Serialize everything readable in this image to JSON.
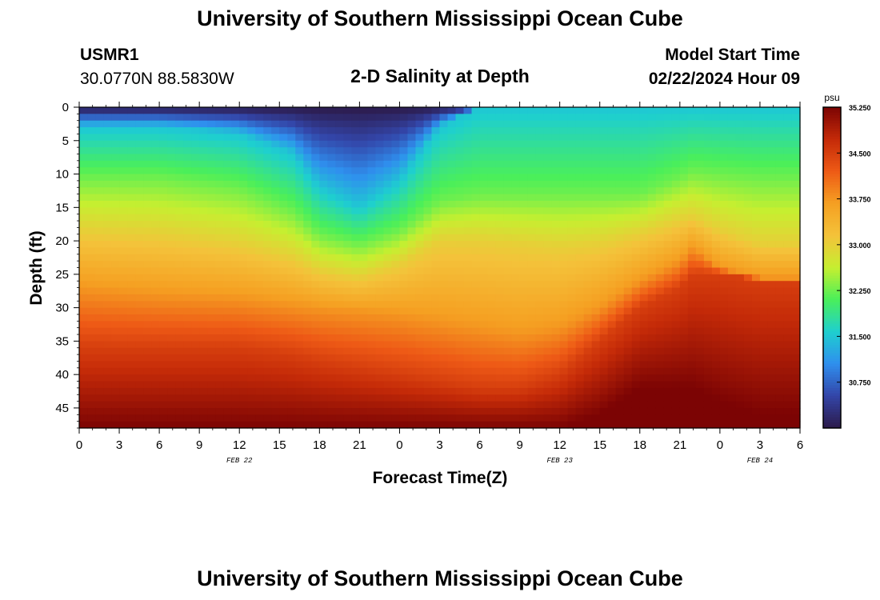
{
  "header": {
    "title": "University of Southern Mississippi Ocean Cube",
    "station_id": "USMR1",
    "coordinates": "30.0770N  88.5830W",
    "plot_title": "2-D Salinity at Depth",
    "model_start_label": "Model Start Time",
    "model_start_value": "02/22/2024 Hour 09"
  },
  "footer": {
    "title": "University of Southern Mississippi Ocean Cube"
  },
  "chart_data": {
    "type": "heatmap",
    "title": "2-D Salinity at Depth",
    "xlabel": "Forecast Time(Z)",
    "ylabel": "Depth (ft)",
    "x_tick_labels": [
      "0",
      "3",
      "6",
      "9",
      "12",
      "15",
      "18",
      "21",
      "0",
      "3",
      "6",
      "9",
      "12",
      "15",
      "18",
      "21",
      "0",
      "3",
      "6"
    ],
    "x_range_hours": [
      0,
      54
    ],
    "date_labels": [
      {
        "text": "FEB 22",
        "hour": 12
      },
      {
        "text": "FEB 23",
        "hour": 36
      },
      {
        "text": "FEB 24",
        "hour": 51
      }
    ],
    "y_ticks": [
      0,
      5,
      10,
      15,
      20,
      25,
      30,
      35,
      40,
      45
    ],
    "y_range_ft": [
      0,
      48
    ],
    "colorbar": {
      "unit": "psu",
      "min": 30.0,
      "max": 35.25,
      "tick_values": [
        "35.250",
        "34.500",
        "33.750",
        "33.000",
        "32.250",
        "31.500",
        "30.750"
      ],
      "colors": [
        "#2c1a4a",
        "#3345a8",
        "#2f8fee",
        "#1ecfcf",
        "#4aef5a",
        "#c6ef30",
        "#f4c23a",
        "#f5a022",
        "#ee5a16",
        "#c42a08",
        "#7c0404"
      ]
    },
    "iso_salinity_depths": {
      "hours": [
        0,
        6,
        12,
        16,
        18,
        21,
        24,
        27,
        30,
        33,
        36,
        39,
        42,
        45,
        46,
        48,
        51,
        54
      ],
      "s31_5": [
        3,
        3,
        4,
        7,
        12,
        15,
        11,
        3,
        0,
        0,
        0,
        0,
        0,
        0,
        0,
        0,
        0,
        0
      ],
      "s32_25": [
        10.5,
        10.5,
        12,
        15.5,
        19,
        20.5,
        18.5,
        14,
        13,
        13,
        13,
        13,
        13,
        10.5,
        9.5,
        10,
        10.5,
        10.5
      ],
      "s33_0": [
        18.5,
        19,
        20.5,
        22.5,
        24.5,
        25.5,
        23.5,
        20,
        20,
        20.5,
        21,
        20.5,
        19,
        17,
        16.5,
        18.5,
        20.5,
        20.5
      ],
      "s33_75": [
        27,
        28,
        28.5,
        29.5,
        30,
        30.5,
        31,
        32,
        33,
        34,
        33,
        30,
        26,
        23,
        21,
        24,
        25.5,
        25.5
      ],
      "s34_5": [
        36,
        36,
        36,
        37,
        38,
        39,
        40,
        41,
        42,
        42,
        40,
        35,
        30,
        27,
        25,
        25,
        26,
        26
      ],
      "s35_25": [
        48,
        48,
        48,
        48,
        48,
        48,
        48,
        48,
        48,
        48,
        48,
        46,
        42,
        42,
        42,
        44,
        46,
        46
      ]
    }
  }
}
